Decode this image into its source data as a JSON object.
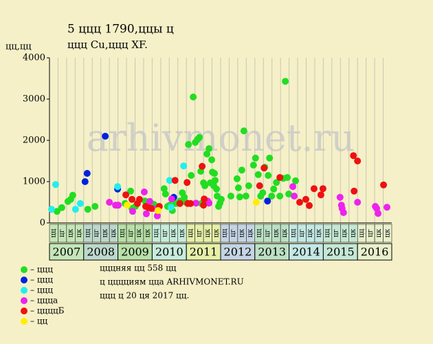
{
  "chart_data": {
    "type": "scatter",
    "title": "5 ццц 1790,ццы ц",
    "subtitle": "ццц Cu,ццц XF.",
    "y_label": "цц,цц",
    "watermark": "arhivmonet.ru",
    "xlim": [
      2007,
      2017
    ],
    "ylim": [
      0,
      4000
    ],
    "yticks": [
      0,
      1000,
      2000,
      3000,
      4000
    ],
    "grid": true,
    "quarter_labels": [
      "цц",
      "цг",
      "цк",
      "цк"
    ],
    "years": [
      {
        "label": "2007",
        "color": "#c4e6b8"
      },
      {
        "label": "2008",
        "color": "#bcd8cc"
      },
      {
        "label": "2009",
        "color": "#b8e0a8"
      },
      {
        "label": "2010",
        "color": "#c8ecdc"
      },
      {
        "label": "2011",
        "color": "#e6f0a8"
      },
      {
        "label": "2012",
        "color": "#c4d4e4"
      },
      {
        "label": "2013",
        "color": "#bce0c4"
      },
      {
        "label": "2014",
        "color": "#c4e8e4"
      },
      {
        "label": "2015",
        "color": "#c4e8d4"
      },
      {
        "label": "2016",
        "color": "#e8f0cc"
      }
    ],
    "series": [
      {
        "name": "– ццц",
        "color": "#22dd22",
        "x": [
          2007.22,
          2007.36,
          2007.54,
          2007.68,
          2007.62,
          2008.12,
          2008.33,
          2008.99,
          2009.21,
          2009.37,
          2009.41,
          2009.51,
          2009.79,
          2010.05,
          2010.13,
          2010.35,
          2010.39,
          2010.45,
          2010.51,
          2010.59,
          2010.69,
          2010.81,
          2010.88,
          2010.94,
          2010.98,
          2011.06,
          2011.14,
          2011.2,
          2011.26,
          2011.32,
          2011.38,
          2011.42,
          2011.44,
          2011.5,
          2011.54,
          2011.6,
          2011.66,
          2011.7,
          2011.74,
          2011.76,
          2011.8,
          2011.82,
          2011.84,
          2011.88,
          2011.9,
          2011.94,
          2011.98,
          2012.02,
          2012.3,
          2012.48,
          2012.52,
          2012.56,
          2012.62,
          2012.68,
          2012.74,
          2012.82,
          2012.96,
          2013.02,
          2013.1,
          2013.17,
          2013.23,
          2013.29,
          2013.39,
          2013.43,
          2013.49,
          2013.55,
          2013.63,
          2013.73,
          2013.83,
          2013.89,
          2013.95,
          2013.99,
          2014.19
        ],
        "values": [
          280,
          370,
          520,
          670,
          570,
          330,
          400,
          430,
          470,
          770,
          350,
          400,
          530,
          450,
          400,
          830,
          700,
          400,
          430,
          300,
          470,
          530,
          730,
          620,
          500,
          1900,
          1150,
          3050,
          1950,
          2020,
          2070,
          1250,
          470,
          970,
          900,
          1670,
          1800,
          970,
          1530,
          1230,
          900,
          1200,
          1030,
          820,
          650,
          400,
          480,
          570,
          650,
          1070,
          850,
          630,
          1280,
          2230,
          650,
          900,
          1400,
          1570,
          1170,
          650,
          730,
          1350,
          1150,
          1570,
          650,
          820,
          980,
          650,
          1080,
          3430,
          1100,
          700,
          1020
        ]
      },
      {
        "name": "– ццц",
        "color": "#0022dd",
        "x": [
          2008.63,
          2008.04,
          2008.1,
          2008.99,
          2010.63,
          2013.37
        ],
        "values": [
          2100,
          1000,
          1200,
          820,
          620,
          530
        ]
      },
      {
        "name": "– ццц",
        "color": "#22eeee",
        "x": [
          2007.06,
          2007.18,
          2007.76,
          2007.9,
          2008.99,
          2010.51,
          2010.92,
          2010.55
        ],
        "values": [
          330,
          930,
          330,
          470,
          880,
          1030,
          1380,
          380
        ]
      },
      {
        "name": "– цццa",
        "color": "#ee22ee",
        "x": [
          2008.75,
          2008.93,
          2009.01,
          2009.43,
          2009.77,
          2009.83,
          2009.93,
          2010.03,
          2010.15,
          2010.57,
          2011.28,
          2011.62,
          2011.66,
          2014.11,
          2014.15,
          2015.49,
          2015.53,
          2015.55,
          2015.59,
          2016.0,
          2016.52,
          2016.56,
          2016.6,
          2016.86
        ],
        "values": [
          500,
          430,
          430,
          280,
          750,
          220,
          520,
          350,
          170,
          580,
          480,
          530,
          480,
          880,
          650,
          620,
          430,
          350,
          250,
          500,
          400,
          350,
          230,
          380
        ]
      },
      {
        "name": "– ццццБ",
        "color": "#ee1111",
        "x": [
          2009.23,
          2009.41,
          2009.57,
          2009.63,
          2009.81,
          2009.89,
          2009.97,
          2010.21,
          2010.67,
          2011.02,
          2010.81,
          2011.04,
          2011.12,
          2011.46,
          2011.5,
          2011.52,
          2013.14,
          2013.27,
          2013.73,
          2014.31,
          2014.49,
          2014.59,
          2014.73,
          2014.93,
          2014.99,
          2015.88,
          2016.0,
          2015.9,
          2016.76
        ],
        "values": [
          680,
          570,
          470,
          570,
          400,
          370,
          350,
          400,
          1030,
          980,
          470,
          470,
          470,
          1370,
          430,
          580,
          900,
          1330,
          1100,
          500,
          570,
          420,
          830,
          680,
          830,
          1630,
          1500,
          770,
          920
        ]
      },
      {
        "name": "– цц",
        "color": "#ffee00",
        "x": [
          2009.27,
          2010.17,
          2013.04
        ],
        "values": [
          430,
          300,
          500
        ]
      }
    ],
    "notes": [
      "цццняя цц 558 цц",
      "ц цццциям цца ARHIVMONET.RU",
      "ццц ц 20 ця 2017 цц."
    ]
  }
}
